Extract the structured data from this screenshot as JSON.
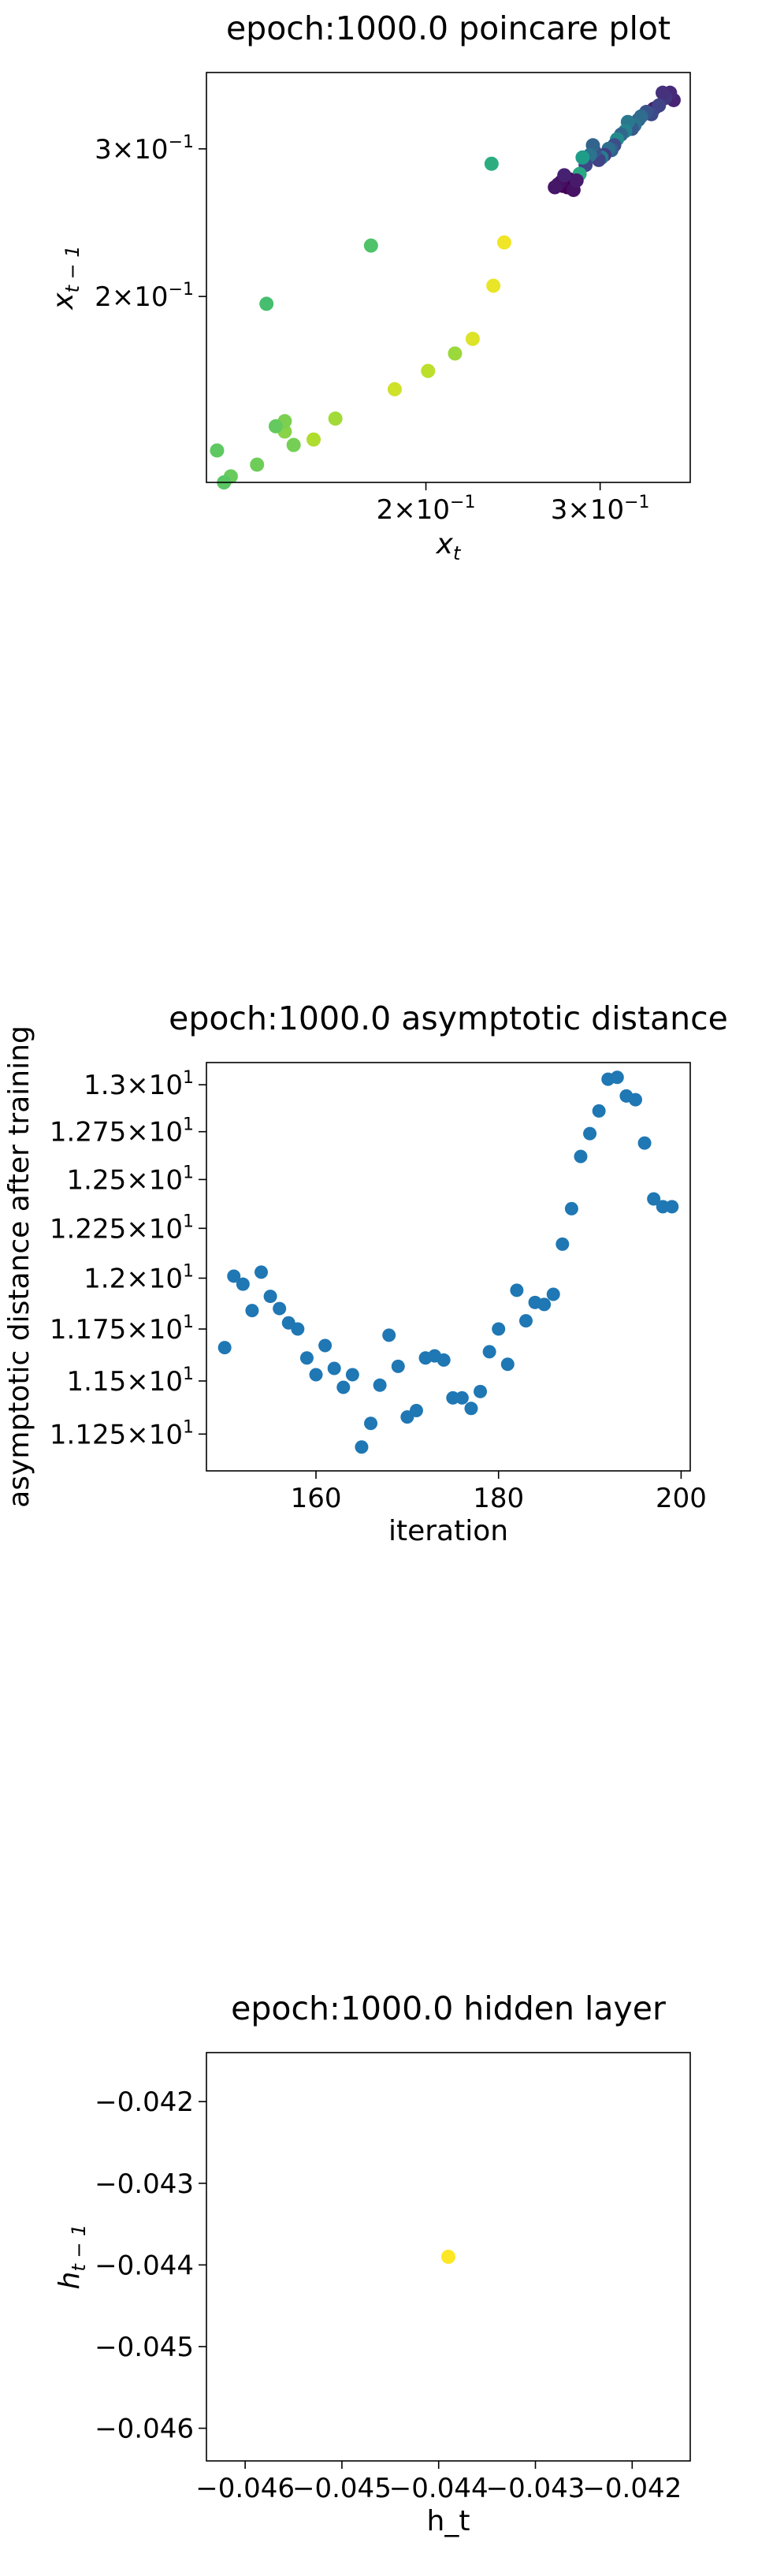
{
  "chart_data": [
    {
      "type": "scatter",
      "title": "epoch:1000.0 poincare plot",
      "xlabel": {
        "base": "x",
        "sub": "t"
      },
      "ylabel": {
        "base": "x",
        "sub": "t − 1"
      },
      "xscale": "log",
      "yscale": "log",
      "xlim": [
        0.12,
        0.37
      ],
      "ylim": [
        0.12,
        0.37
      ],
      "xticks": [
        {
          "value": 0.2,
          "mantissa": "2",
          "base": "10",
          "exp": "−1"
        },
        {
          "value": 0.3,
          "mantissa": "3",
          "base": "10",
          "exp": "−1"
        }
      ],
      "yticks": [
        {
          "value": 0.2,
          "mantissa": "2",
          "base": "10",
          "exp": "−1"
        },
        {
          "value": 0.3,
          "mantissa": "3",
          "base": "10",
          "exp": "−1"
        }
      ],
      "colormap": "viridis",
      "marker_color_note": "points colored by time index (viridis)",
      "points": [
        {
          "x": 0.356,
          "y": 0.343,
          "c": 0.1
        },
        {
          "x": 0.353,
          "y": 0.35,
          "c": 0.12
        },
        {
          "x": 0.349,
          "y": 0.345,
          "c": 0.16
        },
        {
          "x": 0.347,
          "y": 0.35,
          "c": 0.14
        },
        {
          "x": 0.34,
          "y": 0.335,
          "c": 0.08
        },
        {
          "x": 0.344,
          "y": 0.338,
          "c": 0.2
        },
        {
          "x": 0.338,
          "y": 0.33,
          "c": 0.22
        },
        {
          "x": 0.334,
          "y": 0.332,
          "c": 0.26
        },
        {
          "x": 0.328,
          "y": 0.325,
          "c": 0.3
        },
        {
          "x": 0.33,
          "y": 0.328,
          "c": 0.35
        },
        {
          "x": 0.325,
          "y": 0.32,
          "c": 0.38
        },
        {
          "x": 0.323,
          "y": 0.317,
          "c": 0.28
        },
        {
          "x": 0.32,
          "y": 0.323,
          "c": 0.4
        },
        {
          "x": 0.318,
          "y": 0.315,
          "c": 0.45
        },
        {
          "x": 0.315,
          "y": 0.312,
          "c": 0.33
        },
        {
          "x": 0.312,
          "y": 0.308,
          "c": 0.48
        },
        {
          "x": 0.31,
          "y": 0.303,
          "c": 0.24
        },
        {
          "x": 0.308,
          "y": 0.299,
          "c": 0.3
        },
        {
          "x": 0.306,
          "y": 0.3,
          "c": 0.36
        },
        {
          "x": 0.303,
          "y": 0.295,
          "c": 0.18
        },
        {
          "x": 0.301,
          "y": 0.293,
          "c": 0.42
        },
        {
          "x": 0.299,
          "y": 0.291,
          "c": 0.2
        },
        {
          "x": 0.296,
          "y": 0.298,
          "c": 0.26
        },
        {
          "x": 0.295,
          "y": 0.303,
          "c": 0.32
        },
        {
          "x": 0.293,
          "y": 0.295,
          "c": 0.38
        },
        {
          "x": 0.29,
          "y": 0.287,
          "c": 0.22
        },
        {
          "x": 0.288,
          "y": 0.293,
          "c": 0.55
        },
        {
          "x": 0.286,
          "y": 0.28,
          "c": 0.6
        },
        {
          "x": 0.279,
          "y": 0.276,
          "c": 0.02
        },
        {
          "x": 0.277,
          "y": 0.273,
          "c": 0.04
        },
        {
          "x": 0.275,
          "y": 0.271,
          "c": 0.01
        },
        {
          "x": 0.278,
          "y": 0.27,
          "c": 0.0
        },
        {
          "x": 0.274,
          "y": 0.274,
          "c": 0.03
        },
        {
          "x": 0.272,
          "y": 0.272,
          "c": 0.05
        },
        {
          "x": 0.27,
          "y": 0.27,
          "c": 0.06
        },
        {
          "x": 0.282,
          "y": 0.268,
          "c": 0.05
        },
        {
          "x": 0.284,
          "y": 0.275,
          "c": 0.07
        },
        {
          "x": 0.276,
          "y": 0.279,
          "c": 0.09
        },
        {
          "x": 0.233,
          "y": 0.288,
          "c": 0.62
        },
        {
          "x": 0.24,
          "y": 0.232,
          "c": 0.98
        },
        {
          "x": 0.234,
          "y": 0.206,
          "c": 0.97
        },
        {
          "x": 0.223,
          "y": 0.178,
          "c": 0.95
        },
        {
          "x": 0.214,
          "y": 0.171,
          "c": 0.85
        },
        {
          "x": 0.201,
          "y": 0.163,
          "c": 0.9
        },
        {
          "x": 0.186,
          "y": 0.155,
          "c": 0.93
        },
        {
          "x": 0.176,
          "y": 0.23,
          "c": 0.72
        },
        {
          "x": 0.162,
          "y": 0.143,
          "c": 0.86
        },
        {
          "x": 0.154,
          "y": 0.135,
          "c": 0.88
        },
        {
          "x": 0.147,
          "y": 0.133,
          "c": 0.79
        },
        {
          "x": 0.144,
          "y": 0.138,
          "c": 0.82
        },
        {
          "x": 0.144,
          "y": 0.142,
          "c": 0.8
        },
        {
          "x": 0.141,
          "y": 0.14,
          "c": 0.76
        },
        {
          "x": 0.138,
          "y": 0.196,
          "c": 0.7
        },
        {
          "x": 0.135,
          "y": 0.126,
          "c": 0.78
        },
        {
          "x": 0.127,
          "y": 0.122,
          "c": 0.77
        },
        {
          "x": 0.125,
          "y": 0.12,
          "c": 0.74
        },
        {
          "x": 0.123,
          "y": 0.131,
          "c": 0.75
        }
      ]
    },
    {
      "type": "scatter",
      "title": "epoch:1000.0 asymptotic distance",
      "xlabel": "iteration",
      "ylabel": "asymptotic distance after training",
      "xscale": "linear",
      "yscale": "log",
      "xlim": [
        148,
        201
      ],
      "ylim": [
        11.08,
        13.12
      ],
      "xticks": [
        {
          "value": 160,
          "label": "160"
        },
        {
          "value": 180,
          "label": "180"
        },
        {
          "value": 200,
          "label": "200"
        }
      ],
      "yticks": [
        {
          "value": 11.25,
          "mantissa": "1.125",
          "base": "10",
          "exp": "1"
        },
        {
          "value": 11.5,
          "mantissa": "1.15",
          "base": "10",
          "exp": "1"
        },
        {
          "value": 11.75,
          "mantissa": "1.175",
          "base": "10",
          "exp": "1"
        },
        {
          "value": 12.0,
          "mantissa": "1.2",
          "base": "10",
          "exp": "1"
        },
        {
          "value": 12.25,
          "mantissa": "1.225",
          "base": "10",
          "exp": "1"
        },
        {
          "value": 12.5,
          "mantissa": "1.25",
          "base": "10",
          "exp": "1"
        },
        {
          "value": 12.75,
          "mantissa": "1.275",
          "base": "10",
          "exp": "1"
        },
        {
          "value": 13.0,
          "mantissa": "1.3",
          "base": "10",
          "exp": "1"
        }
      ],
      "marker_color": "#1f77b4",
      "x": [
        150,
        151,
        152,
        153,
        154,
        155,
        156,
        157,
        158,
        159,
        160,
        161,
        162,
        163,
        164,
        165,
        166,
        167,
        168,
        169,
        170,
        171,
        172,
        173,
        174,
        175,
        176,
        177,
        178,
        179,
        180,
        181,
        182,
        183,
        184,
        185,
        186,
        187,
        188,
        189,
        190,
        191,
        192,
        193,
        194,
        195,
        196,
        197,
        198,
        199
      ],
      "y": [
        11.66,
        12.01,
        11.97,
        11.84,
        12.03,
        11.91,
        11.85,
        11.78,
        11.75,
        11.61,
        11.53,
        11.67,
        11.56,
        11.47,
        11.53,
        11.19,
        11.3,
        11.48,
        11.72,
        11.57,
        11.33,
        11.36,
        11.61,
        11.62,
        11.6,
        11.42,
        11.42,
        11.37,
        11.45,
        11.64,
        11.75,
        11.58,
        11.94,
        11.79,
        11.88,
        11.87,
        11.92,
        12.17,
        12.35,
        12.62,
        12.74,
        12.86,
        13.03,
        13.04,
        12.94,
        12.92,
        12.69,
        12.4,
        12.36,
        12.36
      ]
    },
    {
      "type": "scatter",
      "title": "epoch:1000.0 hidden layer",
      "xlabel": "h_t",
      "ylabel": {
        "base": "h",
        "sub": "t − 1"
      },
      "xscale": "linear",
      "yscale": "linear",
      "xlim": [
        -0.0464,
        -0.0414
      ],
      "ylim": [
        -0.0464,
        -0.0414
      ],
      "xticks": [
        {
          "value": -0.046,
          "label": "−0.046"
        },
        {
          "value": -0.045,
          "label": "−0.045"
        },
        {
          "value": -0.044,
          "label": "−0.044"
        },
        {
          "value": -0.043,
          "label": "−0.043"
        },
        {
          "value": -0.042,
          "label": "−0.042"
        }
      ],
      "yticks": [
        {
          "value": -0.046,
          "label": "−0.046"
        },
        {
          "value": -0.045,
          "label": "−0.045"
        },
        {
          "value": -0.044,
          "label": "−0.044"
        },
        {
          "value": -0.043,
          "label": "−0.043"
        },
        {
          "value": -0.042,
          "label": "−0.042"
        }
      ],
      "marker_color": "#fde725",
      "points": [
        {
          "x": -0.0439,
          "y": -0.0439
        }
      ]
    }
  ]
}
